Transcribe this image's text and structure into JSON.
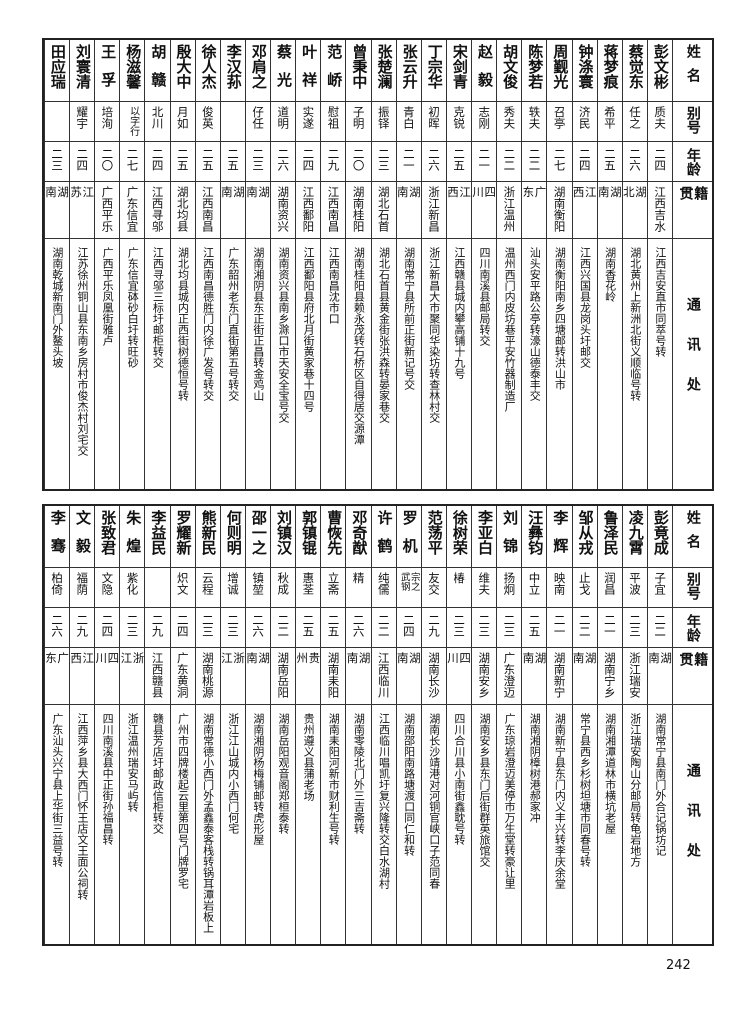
{
  "headers": {
    "name": "姓名",
    "alias": "别号",
    "age": "年龄",
    "native": "籍贯",
    "address": "通讯处"
  },
  "tables": [
    {
      "rows": [
        {
          "name": "彭文彬",
          "alias": "质夫",
          "age": "二四",
          "native": "江西吉水",
          "address": "江西吉安直市同萃号转"
        },
        {
          "name": "蔡觉东",
          "alias": "任之",
          "age": "二六",
          "native": "湖北",
          "address": "湖北黄州上新洲北街义顺临号转"
        },
        {
          "name": "蒋梦痕",
          "alias": "希平",
          "age": "二五",
          "native": "湖南",
          "address": "湖南香花岭"
        },
        {
          "name": "钟涤寰",
          "alias": "济民",
          "age": "二四",
          "native": "江西",
          "address": "江西兴国县龙岗头圩邮交"
        },
        {
          "name": "周觐光",
          "alias": "召亭",
          "age": "二七",
          "native": "湖南衡阳",
          "address": "湖南衡阳南乡四塘邮转洪山市"
        },
        {
          "name": "陈梦若",
          "alias": "轶夫",
          "age": "二二",
          "native": "广东",
          "address": "汕头安平路公亭转濠山德泰丰交"
        },
        {
          "name": "胡文俊",
          "alias": "秀夫",
          "age": "二二",
          "native": "浙江温州",
          "address": "温州西门内皮坊巷平安竹器制造厂"
        },
        {
          "name": "赵毅",
          "alias": "志刚",
          "age": "二一",
          "native": "四川",
          "address": "四川南溪县邮局转交"
        },
        {
          "name": "宋剑青",
          "alias": "克锐",
          "age": "二五",
          "native": "江西",
          "address": "江西赣县城内攀高铺十九号"
        },
        {
          "name": "丁宗华",
          "alias": "初晖",
          "age": "二六",
          "native": "浙江新昌",
          "address": "浙江新昌大市聚同华染坊转查林村交"
        },
        {
          "name": "张云升",
          "alias": "青白",
          "age": "二一",
          "native": "湖南",
          "address": "湖南常宁县所前正街新记号交"
        },
        {
          "name": "张楚澜",
          "alias": "振铎",
          "age": "二三",
          "native": "湖北石首",
          "address": "湖北石首县黄金街张洪森转晏家巷交"
        },
        {
          "name": "曾秉中",
          "alias": "子明",
          "age": "二〇",
          "native": "湖南桂阳",
          "address": "湖南桂阳县赖永茂转石桥区自得居交源潭"
        },
        {
          "name": "范峤",
          "alias": "慰祖",
          "age": "二九",
          "native": "江西南昌",
          "address": "江西南昌沈市口"
        },
        {
          "name": "叶祥",
          "alias": "实遂",
          "age": "二四",
          "native": "江西鄱阳",
          "address": "江西鄱阳县府北月街黄家巷十四号"
        },
        {
          "name": "蔡光",
          "alias": "道明",
          "age": "二六",
          "native": "湖南资兴",
          "address": "湖南资兴县南乡滁口市天安全宝号交"
        },
        {
          "name": "邓肩之",
          "alias": "仔任",
          "age": "二三",
          "native": "湖南",
          "address": "湖南湘阴县东正街正昌转金鸡山"
        },
        {
          "name": "李汉荪",
          "alias": "",
          "age": "二五",
          "native": "湖南",
          "address": "广东韶州老东门直街第五号转交"
        },
        {
          "name": "徐人杰",
          "alias": "俊英",
          "age": "二五",
          "native": "江西南昌",
          "address": "江西南昌德胜门内徐广发号转交"
        },
        {
          "name": "殷大中",
          "alias": "月如",
          "age": "二五",
          "native": "湖北均县",
          "address": "湖北均县城内正西街树德恒号转"
        },
        {
          "name": "胡赣",
          "alias": "北川",
          "age": "二四",
          "native": "江西寻邬",
          "address": "江西寻邬三标圩邮柜转交"
        },
        {
          "name": "杨滋馨",
          "alias": "以字行",
          "age": "二七",
          "native": "广东信宜",
          "address": "广东信宜砵砂白圩转旺砂"
        },
        {
          "name": "王孚",
          "alias": "培洵",
          "age": "二〇",
          "native": "广西平乐",
          "address": "广西平乐凤凰街雅卢"
        },
        {
          "name": "刘寰清",
          "alias": "耀宇",
          "age": "二四",
          "native": "江苏",
          "address": "江苏徐州铜山县东南乡房村市俊杰村刘宅交"
        },
        {
          "name": "田应瑞",
          "alias": "",
          "age": "二三",
          "native": "湖南",
          "address": "湖南乾城新南门外鳌头坡"
        }
      ]
    },
    {
      "rows": [
        {
          "name": "彭竟成",
          "alias": "子宜",
          "age": "二二",
          "native": "湖南",
          "address": "湖南常宁县南门外合记锅坊记"
        },
        {
          "name": "凌九霄",
          "alias": "平波",
          "age": "二三",
          "native": "浙江瑞安",
          "address": "浙江瑞安陶山分邮局转龟岩地方"
        },
        {
          "name": "鲁泽民",
          "alias": "润昌",
          "age": "二一",
          "native": "湖南宁乡",
          "address": "湖南湘潭道林市横坑老屋"
        },
        {
          "name": "邹从戎",
          "alias": "止戈",
          "age": "二二",
          "native": "湖南",
          "address": "常宁县西乡杉树坦塘市同春号转"
        },
        {
          "name": "李辉",
          "alias": "映南",
          "age": "二一",
          "native": "湖南新宁",
          "address": "湖南新宁县东门内义丰兴转李庆余堂"
        },
        {
          "name": "汪彝钧",
          "alias": "中立",
          "age": "二五",
          "native": "湖南",
          "address": "湖南湘阴樟树港郝家冲"
        },
        {
          "name": "刘锦",
          "alias": "扬炯",
          "age": "二三",
          "native": "广东澄迈",
          "address": "广东琼岩澄迈美停市万生堂转豪让里"
        },
        {
          "name": "李亚白",
          "alias": "维夫",
          "age": "二三",
          "native": "湖南安乡",
          "address": "湖南安乡县东门后街群英旅馆交"
        },
        {
          "name": "徐树荣",
          "alias": "椿",
          "age": "二三",
          "native": "四川",
          "address": "四川合川县小南街鑫耽号转"
        },
        {
          "name": "范荡平",
          "alias": "友交",
          "age": "二九",
          "native": "湖南长沙",
          "address": "湖南长沙靖港对河铜官峡口子范同春"
        },
        {
          "name": "罗机",
          "alias": "宗之武钢",
          "age": "二四",
          "native": "湖南",
          "address": "湖南邵阳南路塘渡口同仁和转"
        },
        {
          "name": "许鹤",
          "alias": "纯儒",
          "age": "二二",
          "native": "江西临川",
          "address": "江西临川唱凯圩复兴隆转交白水湖村"
        },
        {
          "name": "邓奇猷",
          "alias": "精",
          "age": "二六",
          "native": "湖南",
          "address": "湖南零陵北门外三吉斋转"
        },
        {
          "name": "曹恢先",
          "alias": "立斋",
          "age": "二五",
          "native": "湖南耒阳",
          "address": "湖南耒阳河新市财利生号转"
        },
        {
          "name": "郭镇锟",
          "alias": "惠荃",
          "age": "二五",
          "native": "贵州",
          "address": "贵州遵义县蒲老场"
        },
        {
          "name": "刘镇汉",
          "alias": "秋成",
          "age": "二二",
          "native": "湖南岳阳",
          "address": "湖南岳阳观音阁郑桓泰转"
        },
        {
          "name": "邵一之",
          "alias": "镇堃",
          "age": "二六",
          "native": "湖南",
          "address": "湖南湘阴杨梅铺邮转虎形屋"
        },
        {
          "name": "何则明",
          "alias": "增诚",
          "age": "二三",
          "native": "浙江",
          "address": "浙江江山城内小西门何宅"
        },
        {
          "name": "熊新民",
          "alias": "云程",
          "age": "二三",
          "native": "湖南桃源",
          "address": "湖南常德小西门外孟鑫泰客栈转锅耳潭岩板上"
        },
        {
          "name": "罗耀新",
          "alias": "炽文",
          "age": "二四",
          "native": "广东黄洞",
          "address": "广州市四牌楼起云里第四号门牌罗宅"
        },
        {
          "name": "李益民",
          "alias": "",
          "age": "二九",
          "native": "江西赣县",
          "address": "赣县芳店圩邮政信柜转交"
        },
        {
          "name": "朱煌",
          "alias": "紫化",
          "age": "二三",
          "native": "浙江",
          "address": "浙江温州瑞安马屿转"
        },
        {
          "name": "张致君",
          "alias": "文隐",
          "age": "二四",
          "native": "四川",
          "address": "四川南溪县中正街孙福昌转"
        },
        {
          "name": "文毅",
          "alias": "福荫",
          "age": "二九",
          "native": "江西",
          "address": "江西萍乡县大西门怀王店文王面公祠转"
        },
        {
          "name": "李骞",
          "alias": "柏倚",
          "age": "二六",
          "native": "广东",
          "address": "广东汕头兴宁县上华街三益号转"
        }
      ]
    }
  ],
  "page_number": "242"
}
